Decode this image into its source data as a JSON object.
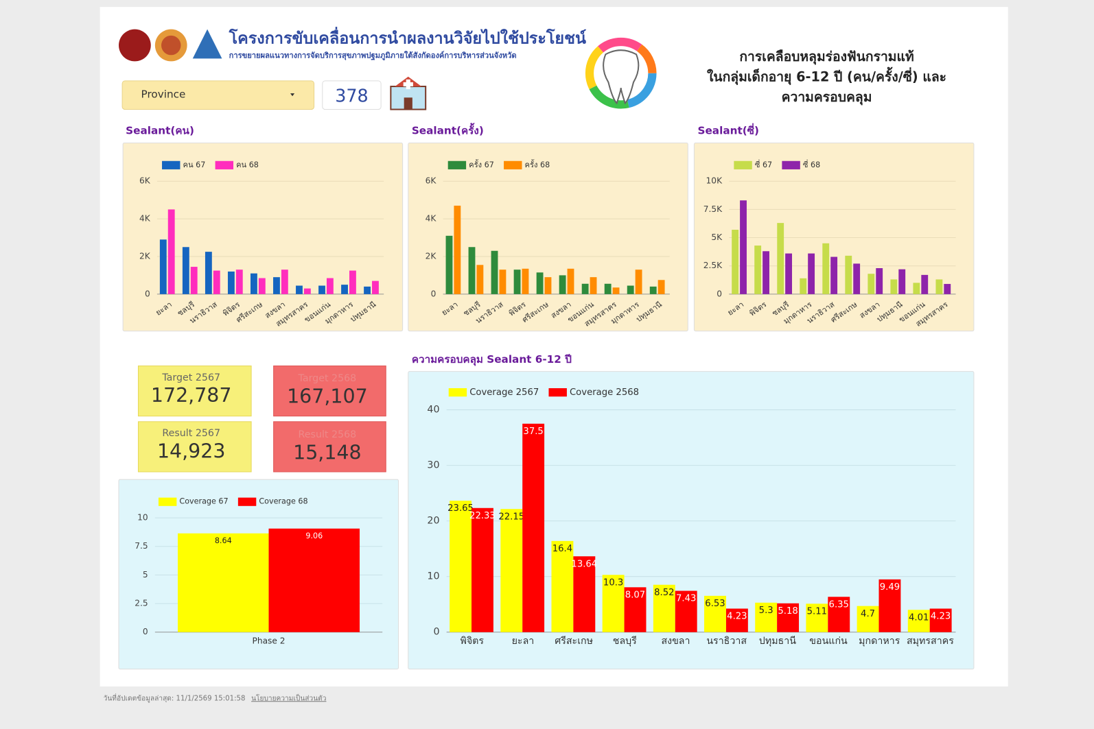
{
  "header": {
    "title": "โครงการขับเคลื่อนการนำผลงานวิจัยไปใช้ประโยชน์",
    "subtitle": "การขยายผลแนวทางการจัดบริการสุขภาพปฐมภูมิภายใต้สังกัดองค์การบริหารส่วนจังหวัด",
    "dropdown": "Province",
    "count": "378",
    "report_title": [
      "การเคลือบหลุมร่องฟันกรามแท้",
      "ในกลุ่มเด็กอายุ 6-12 ปี (คน/ครั้ง/ซี่) และ",
      "ความครอบคลุม"
    ]
  },
  "scorecards": [
    {
      "label": "Target 2567",
      "value": "172,787"
    },
    {
      "label": "Target 2568",
      "value": "167,107"
    },
    {
      "label": "Result 2567",
      "value": "14,923"
    },
    {
      "label": "Result 2568",
      "value": "15,148"
    }
  ],
  "chart_data": [
    {
      "type": "bar",
      "title": "Sealant(คน)",
      "categories": [
        "ยะลา",
        "ชลบุรี",
        "นราธิวาส",
        "พิจิตร",
        "ศรีสะเกษ",
        "สงขลา",
        "สมุทรสาคร",
        "ขอนแก่น",
        "มุกดาหาร",
        "ปทุมธานี"
      ],
      "series": [
        {
          "name": "คน 67",
          "color": "#1565c0",
          "values": [
            2900,
            2500,
            2250,
            1200,
            1100,
            900,
            450,
            450,
            500,
            400
          ]
        },
        {
          "name": "คน 68",
          "color": "#ff2dbd",
          "values": [
            4500,
            1450,
            1250,
            1300,
            850,
            1300,
            300,
            850,
            1250,
            700
          ]
        }
      ],
      "ylim": [
        0,
        6000
      ],
      "yticks": [
        0,
        {
          "value": 2000,
          "label": "2K"
        },
        {
          "value": 4000,
          "label": "4K"
        },
        {
          "value": 6000,
          "label": "6K"
        }
      ],
      "grid": true
    },
    {
      "type": "bar",
      "title": "Sealant(ครั้ง)",
      "categories": [
        "ยะลา",
        "ชลบุรี",
        "นราธิวาส",
        "พิจิตร",
        "ศรีสะเกษ",
        "สงขลา",
        "ขอนแก่น",
        "สมุทรสาคร",
        "มุกดาหาร",
        "ปทุมธานี"
      ],
      "series": [
        {
          "name": "ครั้ง 67",
          "color": "#2e8b3c",
          "values": [
            3100,
            2500,
            2300,
            1300,
            1150,
            1000,
            550,
            550,
            450,
            400
          ]
        },
        {
          "name": "ครั้ง 68",
          "color": "#ff8c00",
          "values": [
            4700,
            1550,
            1300,
            1350,
            900,
            1350,
            900,
            350,
            1300,
            750
          ]
        }
      ],
      "ylim": [
        0,
        6000
      ],
      "yticks": [
        0,
        {
          "value": 2000,
          "label": "2K"
        },
        {
          "value": 4000,
          "label": "4K"
        },
        {
          "value": 6000,
          "label": "6K"
        }
      ],
      "grid": true
    },
    {
      "type": "bar",
      "title": "Sealant(ซี่)",
      "categories": [
        "ยะลา",
        "พิจิตร",
        "ชลบุรี",
        "มุกดาหาร",
        "นราธิวาส",
        "ศรีสะเกษ",
        "สงขลา",
        "ปทุมธานี",
        "ขอนแก่น",
        "สมุทรสาคร"
      ],
      "series": [
        {
          "name": "ซี่ 67",
          "color": "#c6dc4a",
          "values": [
            5700,
            4300,
            6300,
            1400,
            4500,
            3400,
            1800,
            1300,
            1000,
            1300
          ]
        },
        {
          "name": "ซี่ 68",
          "color": "#8e24aa",
          "values": [
            8300,
            3800,
            3600,
            3600,
            3300,
            2700,
            2300,
            2200,
            1700,
            900
          ]
        }
      ],
      "ylim": [
        0,
        10000
      ],
      "yticks": [
        0,
        {
          "value": 2500,
          "label": "2.5K"
        },
        {
          "value": 5000,
          "label": "5K"
        },
        {
          "value": 7500,
          "label": "7.5K"
        },
        {
          "value": 10000,
          "label": "10K"
        }
      ],
      "grid": true
    },
    {
      "type": "bar",
      "categories": [
        "Phase 2"
      ],
      "series": [
        {
          "name": "Coverage 67",
          "color": "#ffff00",
          "values": [
            8.64
          ]
        },
        {
          "name": "Coverage 68",
          "color": "#ff0000",
          "values": [
            9.06
          ]
        }
      ],
      "ylim": [
        0,
        10
      ],
      "yticks": [
        0,
        2.5,
        5,
        7.5,
        10
      ],
      "grid": true
    },
    {
      "type": "bar",
      "title": "ความครอบคลุม Sealant 6-12 ปี",
      "categories": [
        "พิจิตร",
        "ยะลา",
        "ศรีสะเกษ",
        "ชลบุรี",
        "สงขลา",
        "นราธิวาส",
        "ปทุมธานี",
        "ขอนแก่น",
        "มุกดาหาร",
        "สมุทรสาคร"
      ],
      "series": [
        {
          "name": "Coverage 2567",
          "color": "#ffff00",
          "values": [
            23.65,
            22.15,
            16.4,
            10.3,
            8.52,
            6.53,
            5.3,
            5.11,
            4.7,
            4.01
          ]
        },
        {
          "name": "Coverage 2568",
          "color": "#ff0000",
          "values": [
            22.33,
            37.5,
            13.64,
            8.07,
            7.43,
            4.23,
            5.18,
            6.35,
            9.49,
            4.23
          ]
        }
      ],
      "ylim": [
        0,
        40
      ],
      "yticks": [
        0,
        10,
        20,
        30,
        40
      ],
      "grid": true
    }
  ],
  "footer": {
    "updated": "วันที่อัปเดตข้อมูลล่าสุด: 11/1/2569 15:01:58",
    "privacy": "นโยบายความเป็นส่วนตัว"
  }
}
